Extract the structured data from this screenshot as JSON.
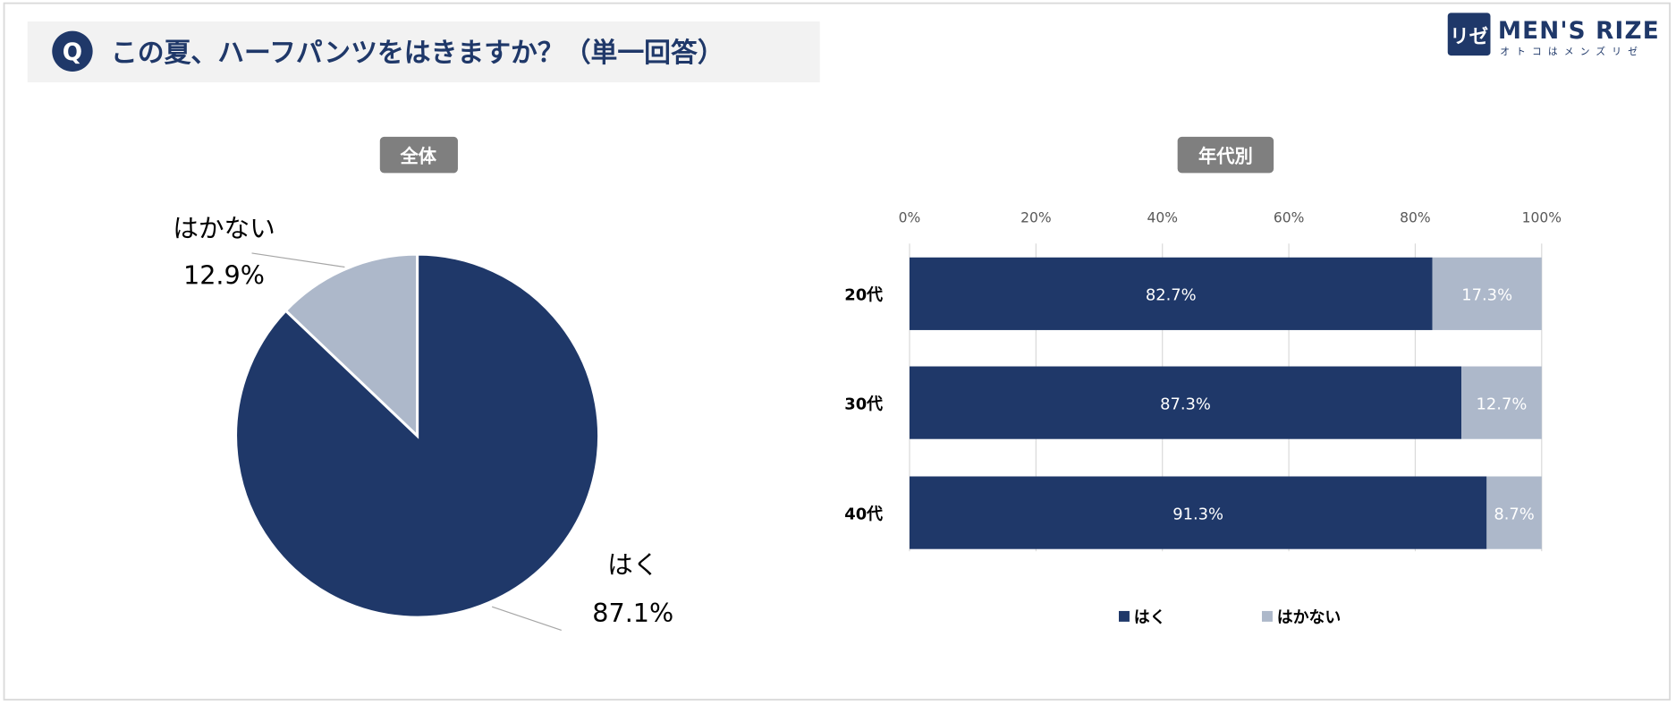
{
  "header": {
    "q_badge": "Q",
    "question": "この夏、ハーフパンツをはきますか？（単一回答）"
  },
  "logo": {
    "mark": "リゼ",
    "name": "MEN'S RIZE",
    "tagline": "オトコはメンズリゼ"
  },
  "colors": {
    "haku": "#1f3869",
    "hakanai": "#adb8ca",
    "badge": "#7f7f7f",
    "header_bg": "#f2f2f2"
  },
  "chart_data": [
    {
      "type": "pie",
      "title": "全体",
      "slices": [
        {
          "label": "はく",
          "value": 87.1,
          "display": "87.1%"
        },
        {
          "label": "はかない",
          "value": 12.9,
          "display": "12.9%"
        }
      ]
    },
    {
      "type": "bar",
      "orientation": "horizontal-stacked-100",
      "title": "年代別",
      "categories": [
        "20代",
        "30代",
        "40代"
      ],
      "xlim": [
        0,
        100
      ],
      "xticks": [
        "0%",
        "20%",
        "40%",
        "60%",
        "80%",
        "100%"
      ],
      "grid": true,
      "legend": "bottom",
      "series": [
        {
          "name": "はく",
          "values": [
            82.7,
            87.3,
            91.3
          ],
          "labels": [
            "82.7%",
            "87.3%",
            "91.3%"
          ]
        },
        {
          "name": "はかない",
          "values": [
            17.3,
            12.7,
            8.7
          ],
          "labels": [
            "17.3%",
            "12.7%",
            "8.7%"
          ]
        }
      ]
    }
  ]
}
